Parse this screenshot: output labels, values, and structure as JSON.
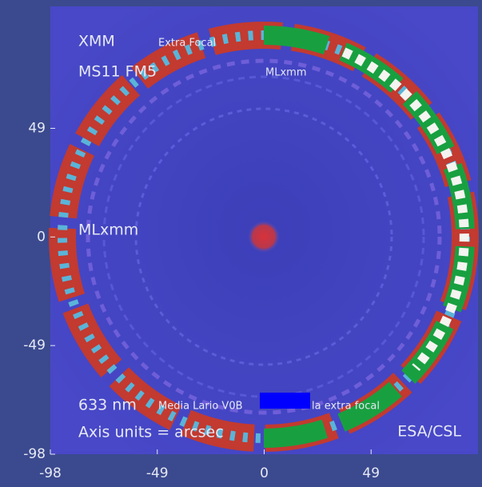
{
  "image": {
    "labels": {
      "xmm": "XMM",
      "mode": "Extra Focal",
      "module": "MS11 FM5",
      "instrument_top": "MLxmm",
      "instrument_left": "MLxmm",
      "wavelength": "633 nm",
      "source_left": "Media Lario V0B",
      "source_right": "la extra focal",
      "units": "Axis units = arcsec",
      "credit": "ESA/CSL"
    },
    "x_axis": {
      "lim": [
        -98,
        98
      ],
      "ticks": [
        -98,
        -49,
        0,
        49
      ]
    },
    "y_axis": {
      "lim": [
        -98,
        104
      ],
      "ticks": [
        49,
        0,
        -49,
        -98
      ]
    }
  }
}
